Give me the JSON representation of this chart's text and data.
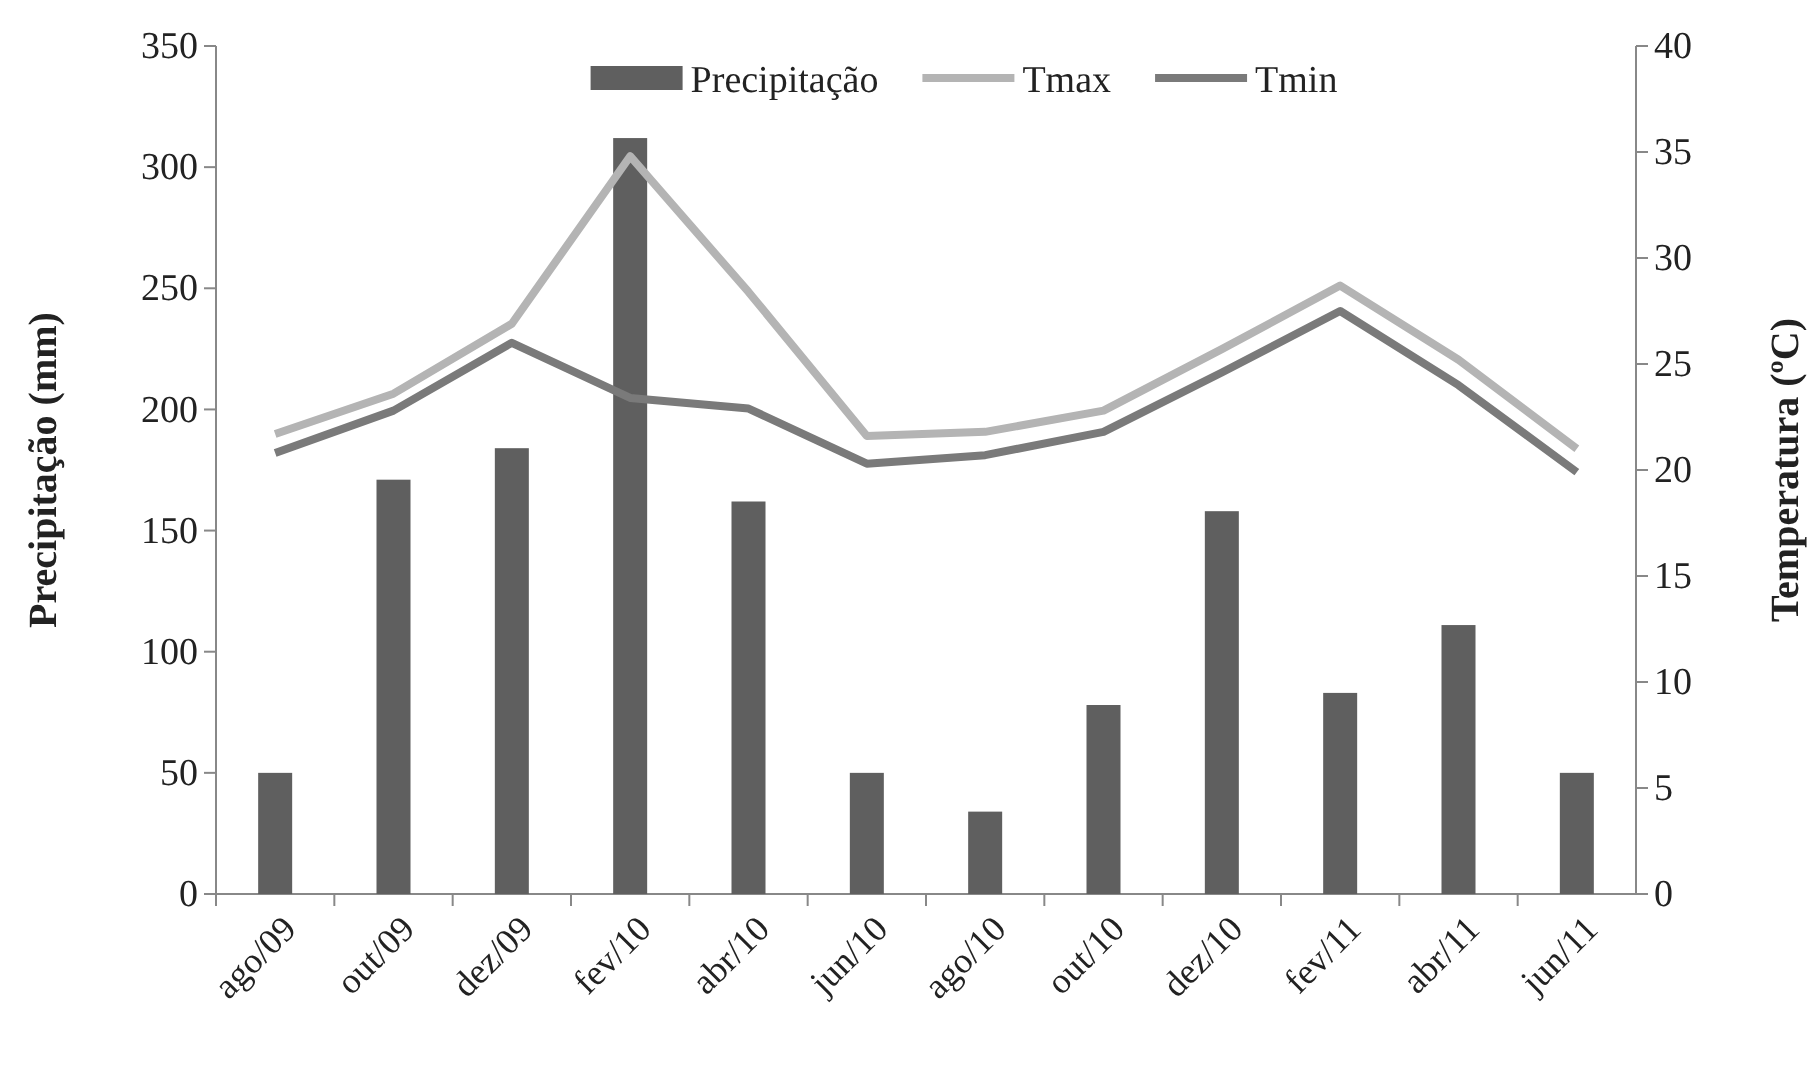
{
  "chart_data": {
    "type": "bar",
    "categories": [
      "ago/09",
      "out/09",
      "dez/09",
      "fev/10",
      "abr/10",
      "jun/10",
      "ago/10",
      "out/10",
      "dez/10",
      "fev/11",
      "abr/11",
      "jun/11"
    ],
    "series": [
      {
        "name": "Precipitação",
        "color": "#5f5f5f",
        "values": [
          50,
          171,
          184,
          312,
          162,
          50,
          34,
          78,
          158,
          83,
          111,
          50
        ]
      },
      {
        "name": "Tmax",
        "type": "line",
        "axis": "y2",
        "color": "#b4b4b4",
        "values": [
          21.7,
          23.6,
          26.9,
          34.8,
          28.4,
          21.6,
          21.8,
          22.8,
          25.7,
          28.7,
          25.2,
          21.0
        ]
      },
      {
        "name": "Tmin",
        "type": "line",
        "axis": "y2",
        "color": "#7a7a7a",
        "values": [
          20.8,
          22.8,
          26.0,
          23.4,
          22.9,
          20.3,
          20.7,
          21.8,
          24.6,
          27.5,
          24.0,
          19.9
        ]
      }
    ],
    "ylabel": "Precipitação (mm)",
    "y2label": "Temperatura (ºC)",
    "ylim": [
      0,
      350
    ],
    "yticks": [
      0,
      50,
      100,
      150,
      200,
      250,
      300,
      350
    ],
    "y2lim": [
      0,
      40
    ],
    "y2ticks": [
      0,
      5,
      10,
      15,
      20,
      25,
      30,
      35,
      40
    ],
    "legend": "top",
    "grid": false,
    "marker": "none",
    "line_style": "solid"
  }
}
